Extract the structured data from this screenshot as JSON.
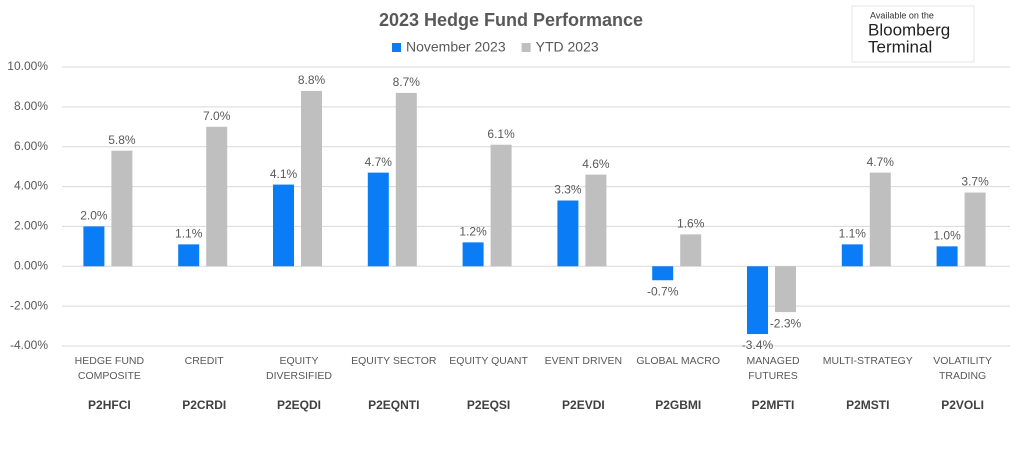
{
  "chart_data": {
    "type": "bar",
    "title": "2023 Hedge Fund Performance",
    "categories": [
      "HEDGE FUND COMPOSITE",
      "CREDIT",
      "EQUITY DIVERSIFIED",
      "EQUITY SECTOR",
      "EQUITY QUANT",
      "EVENT DRIVEN",
      "GLOBAL MACRO",
      "MANAGED FUTURES",
      "MULTI-STRATEGY",
      "VOLATILITY TRADING"
    ],
    "codes": [
      "P2HFCI",
      "P2CRDI",
      "P2EQDI",
      "P2EQNTI",
      "P2EQSI",
      "P2EVDI",
      "P2GBMI",
      "P2MFTI",
      "P2MSTI",
      "P2VOLI"
    ],
    "series": [
      {
        "name": "November 2023",
        "color": "#0a7cf5",
        "values": [
          2.0,
          1.1,
          4.1,
          4.7,
          1.2,
          3.3,
          -0.7,
          -3.4,
          1.1,
          1.0
        ],
        "value_labels": [
          "2.0%",
          "1.1%",
          "4.1%",
          "4.7%",
          "1.2%",
          "3.3%",
          "-0.7%",
          "-3.4%",
          "1.1%",
          "1.0%"
        ]
      },
      {
        "name": "YTD 2023",
        "color": "#bfbfbf",
        "values": [
          5.8,
          7.0,
          8.8,
          8.7,
          6.1,
          4.6,
          1.6,
          -2.3,
          4.7,
          3.7
        ],
        "value_labels": [
          "5.8%",
          "7.0%",
          "8.8%",
          "8.7%",
          "6.1%",
          "4.6%",
          "1.6%",
          "-2.3%",
          "4.7%",
          "3.7%"
        ]
      }
    ],
    "ylim": [
      -4,
      10
    ],
    "yticks": [
      {
        "value": -4,
        "label": "-4.00%"
      },
      {
        "value": -2,
        "label": "-2.00%"
      },
      {
        "value": 0,
        "label": "0.00%"
      },
      {
        "value": 2,
        "label": "2.00%"
      },
      {
        "value": 4,
        "label": "4.00%"
      },
      {
        "value": 6,
        "label": "6.00%"
      },
      {
        "value": 8,
        "label": "8.00%"
      },
      {
        "value": 10,
        "label": "10.00%"
      }
    ],
    "grid": true,
    "legend": "top"
  },
  "badge": {
    "line1": "Available on the",
    "line2": "Bloomberg",
    "line3": "Terminal"
  }
}
